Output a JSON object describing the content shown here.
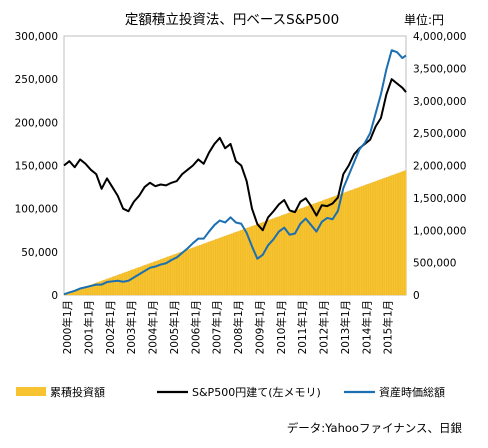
{
  "chart_data": {
    "type": "line",
    "title": "定額積立投資法、円ベースS&P500",
    "unit_label": "単位:円",
    "source": "データ:Yahooファイナンス、日銀",
    "left_axis": {
      "range": [
        0,
        300000
      ],
      "tick_labels": [
        "300,000",
        "250,000",
        "200,000",
        "150,000",
        "100,000",
        "50,000",
        "0"
      ]
    },
    "right_axis": {
      "range": [
        0,
        4000000
      ],
      "tick_labels": [
        "4,000,000",
        "3,500,000",
        "3,000,000",
        "2,500,000",
        "2,000,000",
        "1,500,000",
        "1,000,000",
        "500,000",
        "0"
      ]
    },
    "x_axis": {
      "start": "2000-01",
      "end": "2015-12",
      "tick_labels": [
        "2000年1月",
        "2001年1月",
        "2002年1月",
        "2003年1月",
        "2004年1月",
        "2005年1月",
        "2006年1月",
        "2007年1月",
        "2008年1月",
        "2009年1月",
        "2010年1月",
        "2011年1月",
        "2012年1月",
        "2013年1月",
        "2014年1月",
        "2015年1月"
      ]
    },
    "grid": false,
    "legend": {
      "placement": "bottom",
      "entries": [
        "累積投資額",
        "S&P500円建て(左メモリ)",
        "資産時価総額"
      ]
    },
    "colors": {
      "cumulative": "#f7c331",
      "sp500": "#000000",
      "market_value": "#1c6fb0"
    },
    "series": [
      {
        "name": "累積投資額",
        "axis": "right",
        "kind": "area",
        "x": [
          "2000-01",
          "2015-12"
        ],
        "values": [
          10000,
          1920000
        ]
      },
      {
        "name": "S&P500円建て(左メモリ)",
        "axis": "left",
        "kind": "line",
        "x": [
          "2000-01",
          "2000-04",
          "2000-07",
          "2000-10",
          "2001-01",
          "2001-04",
          "2001-07",
          "2001-10",
          "2002-01",
          "2002-04",
          "2002-07",
          "2002-10",
          "2003-01",
          "2003-04",
          "2003-07",
          "2003-10",
          "2004-01",
          "2004-04",
          "2004-07",
          "2004-10",
          "2005-01",
          "2005-04",
          "2005-07",
          "2005-10",
          "2006-01",
          "2006-04",
          "2006-07",
          "2006-10",
          "2007-01",
          "2007-04",
          "2007-07",
          "2007-10",
          "2008-01",
          "2008-04",
          "2008-07",
          "2008-10",
          "2009-01",
          "2009-04",
          "2009-07",
          "2009-10",
          "2010-01",
          "2010-04",
          "2010-07",
          "2010-10",
          "2011-01",
          "2011-04",
          "2011-07",
          "2011-10",
          "2012-01",
          "2012-04",
          "2012-07",
          "2012-10",
          "2013-01",
          "2013-04",
          "2013-07",
          "2013-10",
          "2014-01",
          "2014-04",
          "2014-07",
          "2014-10",
          "2015-01",
          "2015-04",
          "2015-07",
          "2015-10",
          "2015-12"
        ],
        "values": [
          150000,
          155000,
          148000,
          157000,
          152000,
          145000,
          140000,
          123000,
          135000,
          125000,
          115000,
          100000,
          97000,
          108000,
          115000,
          125000,
          130000,
          126000,
          128000,
          127000,
          130000,
          132000,
          140000,
          145000,
          150000,
          157000,
          152000,
          165000,
          175000,
          182000,
          170000,
          175000,
          155000,
          150000,
          132000,
          100000,
          82000,
          75000,
          90000,
          97000,
          105000,
          110000,
          98000,
          96000,
          108000,
          112000,
          103000,
          92000,
          104000,
          103000,
          106000,
          113000,
          140000,
          150000,
          163000,
          170000,
          175000,
          180000,
          195000,
          205000,
          232000,
          250000,
          245000,
          240000,
          235000
        ]
      },
      {
        "name": "資産時価総額",
        "axis": "right",
        "kind": "line",
        "x": [
          "2000-01",
          "2000-04",
          "2000-07",
          "2000-10",
          "2001-01",
          "2001-04",
          "2001-07",
          "2001-10",
          "2002-01",
          "2002-04",
          "2002-07",
          "2002-10",
          "2003-01",
          "2003-04",
          "2003-07",
          "2003-10",
          "2004-01",
          "2004-04",
          "2004-07",
          "2004-10",
          "2005-01",
          "2005-04",
          "2005-07",
          "2005-10",
          "2006-01",
          "2006-04",
          "2006-07",
          "2006-10",
          "2007-01",
          "2007-04",
          "2007-07",
          "2007-10",
          "2008-01",
          "2008-04",
          "2008-07",
          "2008-10",
          "2009-01",
          "2009-04",
          "2009-07",
          "2009-10",
          "2010-01",
          "2010-04",
          "2010-07",
          "2010-10",
          "2011-01",
          "2011-04",
          "2011-07",
          "2011-10",
          "2012-01",
          "2012-04",
          "2012-07",
          "2012-10",
          "2013-01",
          "2013-04",
          "2013-07",
          "2013-10",
          "2014-01",
          "2014-04",
          "2014-07",
          "2014-10",
          "2015-01",
          "2015-04",
          "2015-07",
          "2015-10",
          "2015-12"
        ],
        "values": [
          10000,
          40000,
          65000,
          100000,
          120000,
          140000,
          160000,
          160000,
          200000,
          210000,
          220000,
          205000,
          220000,
          270000,
          320000,
          370000,
          420000,
          440000,
          470000,
          490000,
          540000,
          580000,
          650000,
          720000,
          800000,
          870000,
          870000,
          980000,
          1080000,
          1150000,
          1120000,
          1200000,
          1120000,
          1100000,
          960000,
          750000,
          560000,
          620000,
          770000,
          860000,
          980000,
          1040000,
          930000,
          950000,
          1100000,
          1180000,
          1080000,
          980000,
          1130000,
          1190000,
          1170000,
          1300000,
          1650000,
          1850000,
          2050000,
          2250000,
          2350000,
          2500000,
          2800000,
          3100000,
          3480000,
          3780000,
          3750000,
          3660000,
          3700000
        ]
      }
    ]
  }
}
